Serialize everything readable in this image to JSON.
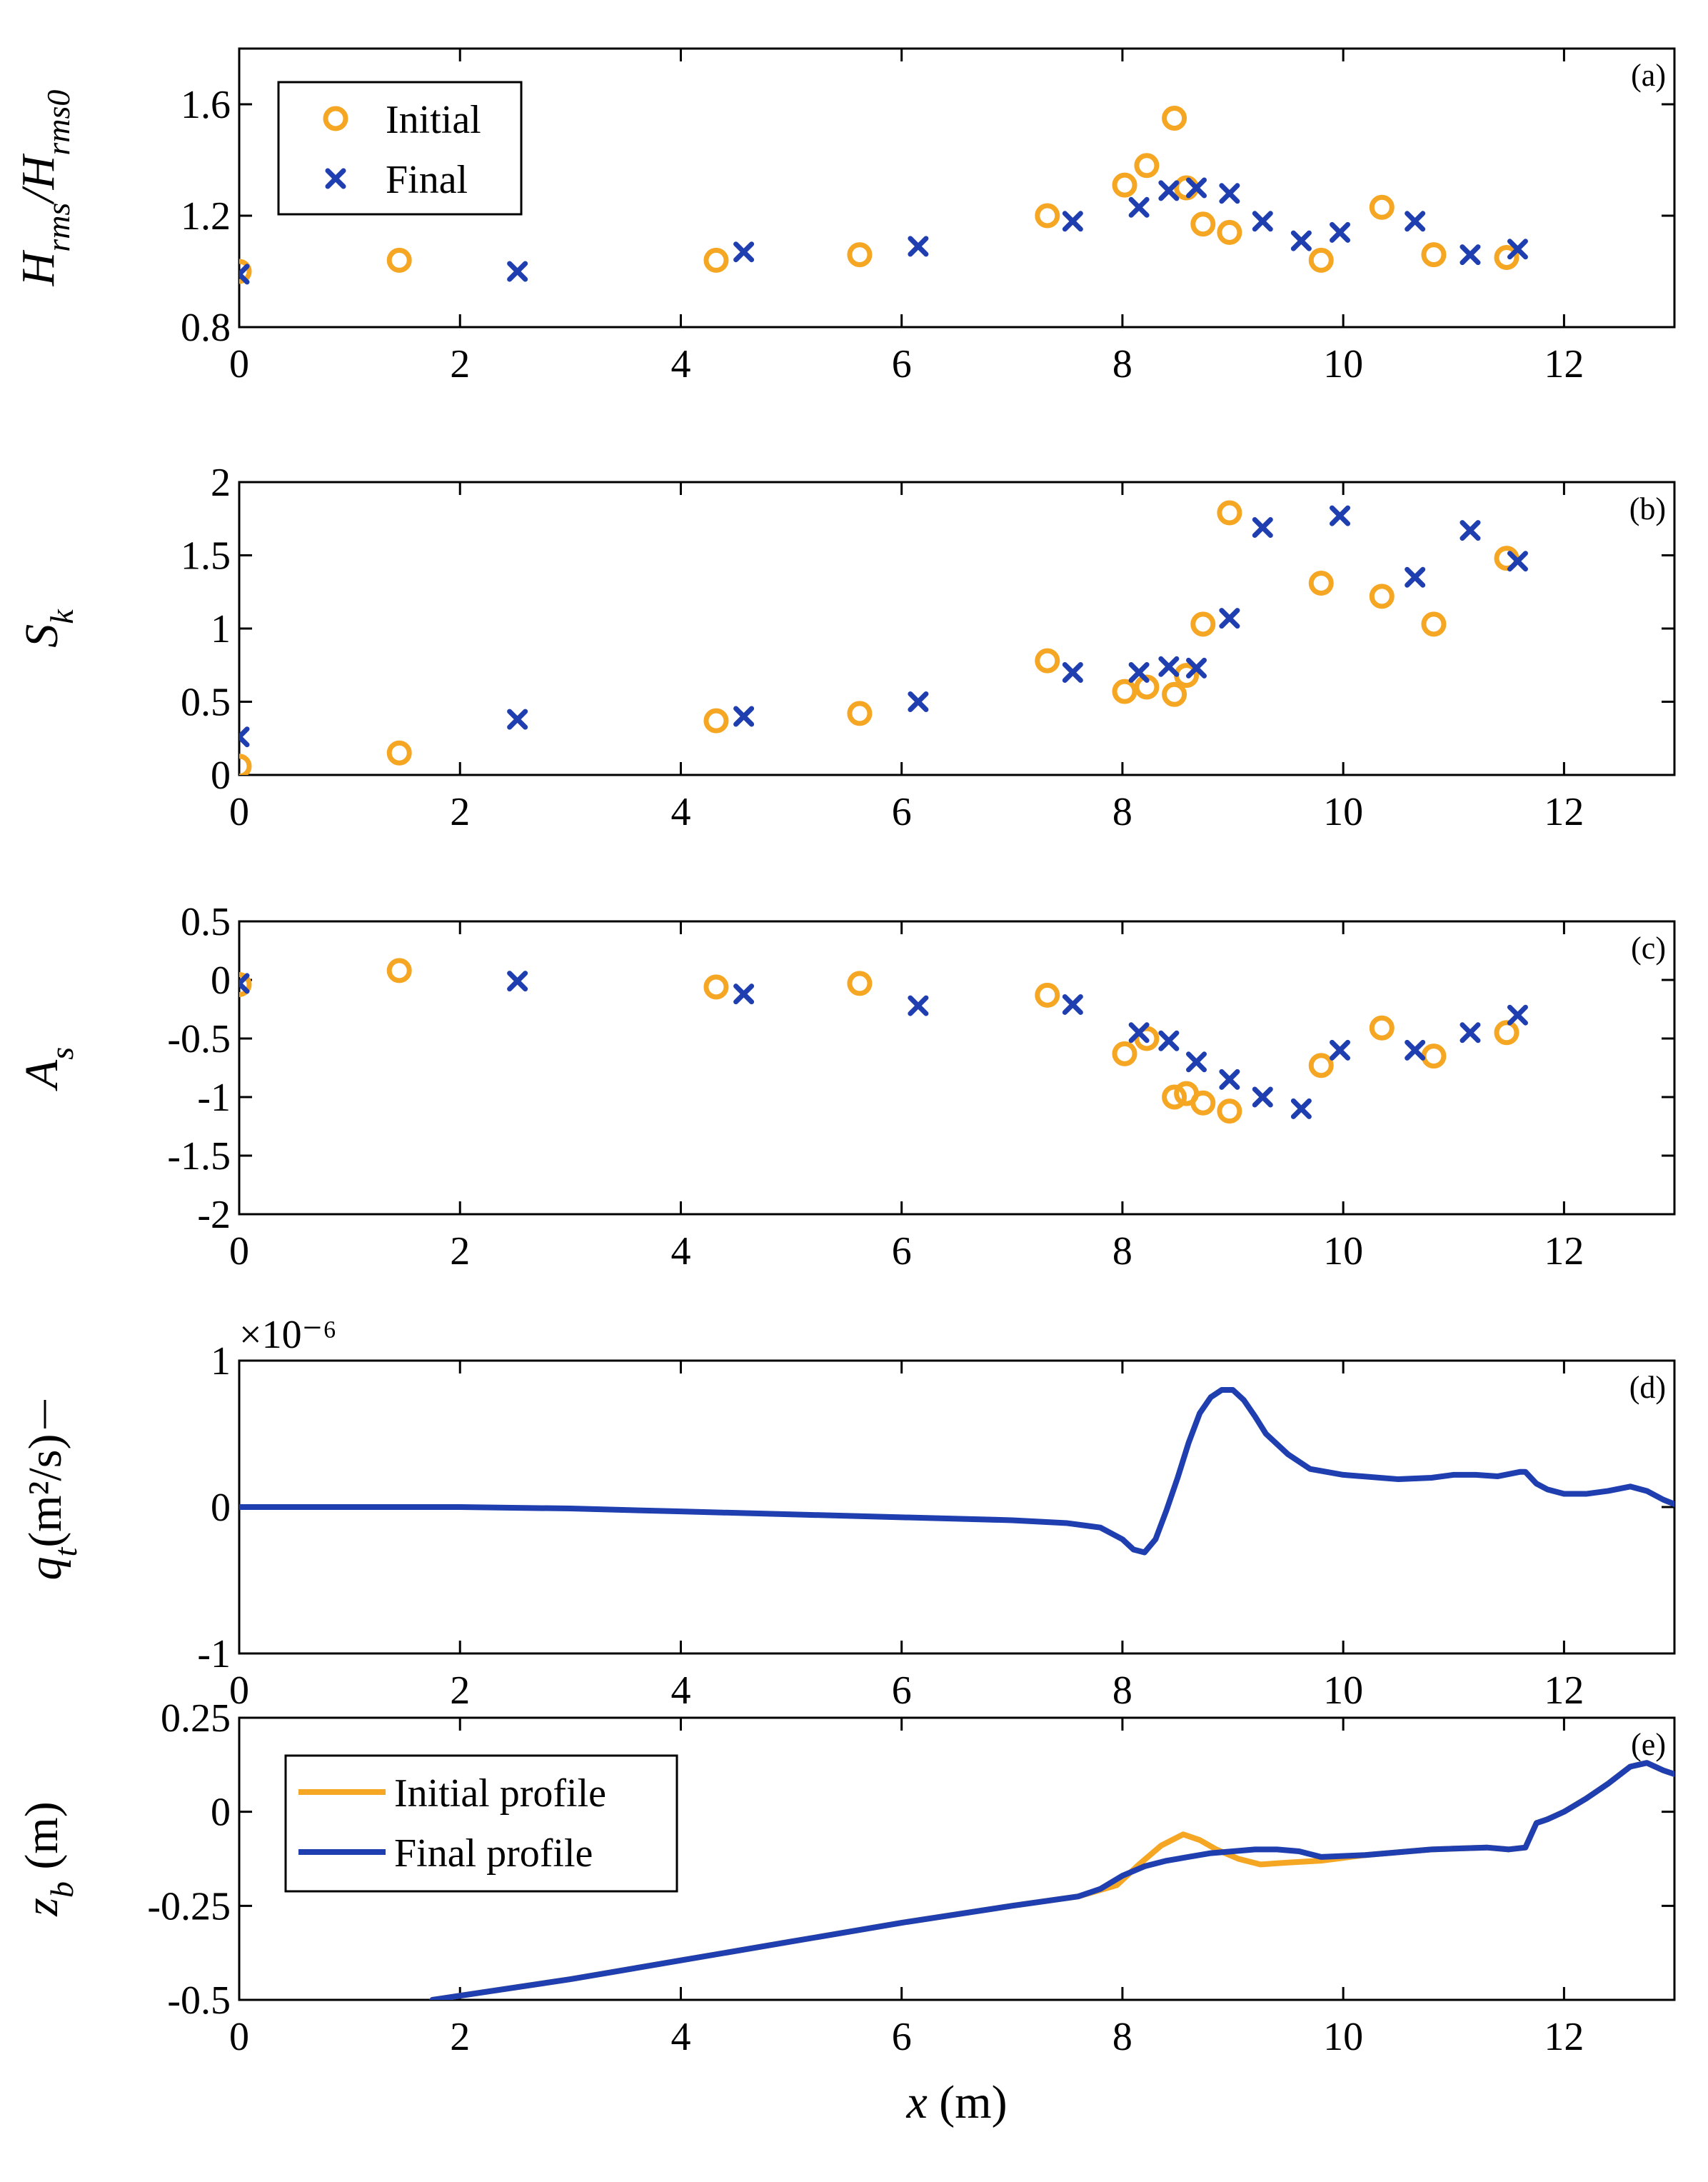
{
  "colors": {
    "initial": "#F5A623",
    "final": "#1F3FB0",
    "axis": "#000000",
    "background": "#ffffff"
  },
  "chart_data": [
    {
      "id": "a",
      "type": "scatter",
      "panel_label": "(a)",
      "ylabel": {
        "main": "H",
        "sub1": "rms",
        "sep": "/H",
        "sub2": "rms0"
      },
      "xlim": [
        0,
        13
      ],
      "ylim": [
        0.8,
        1.8
      ],
      "xticks": [
        0,
        2,
        4,
        6,
        8,
        10,
        12
      ],
      "xtick_labels": [
        "0",
        "2",
        "4",
        "6",
        "8",
        "10",
        "12"
      ],
      "yticks": [
        0.8,
        1.2,
        1.6
      ],
      "ytick_labels": [
        "0.8",
        "1.2",
        "1.6"
      ],
      "legend": {
        "position": "top-left",
        "entries": [
          "Initial",
          "Final"
        ]
      },
      "series": [
        {
          "name": "Initial",
          "marker": "circle",
          "x": [
            0,
            1.45,
            4.32,
            5.62,
            7.32,
            8.02,
            8.22,
            8.47,
            8.58,
            8.73,
            8.97,
            9.8,
            10.35,
            10.82,
            11.48
          ],
          "y": [
            1.0,
            1.04,
            1.04,
            1.06,
            1.2,
            1.31,
            1.38,
            1.55,
            1.3,
            1.17,
            1.14,
            1.04,
            1.23,
            1.06,
            1.05
          ]
        },
        {
          "name": "Final",
          "marker": "x",
          "x": [
            0,
            2.52,
            4.57,
            6.15,
            7.55,
            8.15,
            8.42,
            8.67,
            8.97,
            9.27,
            9.62,
            9.97,
            10.65,
            11.15,
            11.58
          ],
          "y": [
            0.99,
            1.0,
            1.07,
            1.09,
            1.18,
            1.23,
            1.29,
            1.3,
            1.28,
            1.18,
            1.11,
            1.14,
            1.18,
            1.06,
            1.08
          ]
        }
      ]
    },
    {
      "id": "b",
      "type": "scatter",
      "panel_label": "(b)",
      "ylabel": {
        "main": "S",
        "sub1": "k"
      },
      "xlim": [
        0,
        13
      ],
      "ylim": [
        0,
        2
      ],
      "xticks": [
        0,
        2,
        4,
        6,
        8,
        10,
        12
      ],
      "xtick_labels": [
        "0",
        "2",
        "4",
        "6",
        "8",
        "10",
        "12"
      ],
      "yticks": [
        0,
        0.5,
        1,
        1.5,
        2
      ],
      "ytick_labels": [
        "0",
        "0.5",
        "1",
        "1.5",
        "2"
      ],
      "series": [
        {
          "name": "Initial",
          "marker": "circle",
          "x": [
            0,
            1.45,
            4.32,
            5.62,
            7.32,
            8.02,
            8.22,
            8.47,
            8.58,
            8.73,
            8.97,
            9.8,
            10.35,
            10.82,
            11.48
          ],
          "y": [
            0.06,
            0.15,
            0.37,
            0.42,
            0.78,
            0.57,
            0.6,
            0.55,
            0.68,
            1.03,
            1.79,
            1.31,
            1.22,
            1.03,
            1.48
          ]
        },
        {
          "name": "Final",
          "marker": "x",
          "x": [
            0,
            2.52,
            4.57,
            6.15,
            7.55,
            8.15,
            8.42,
            8.67,
            8.97,
            9.27,
            9.97,
            10.65,
            11.15,
            11.58
          ],
          "y": [
            0.26,
            0.38,
            0.4,
            0.5,
            0.7,
            0.7,
            0.74,
            0.73,
            1.07,
            1.69,
            1.77,
            1.35,
            1.67,
            1.46
          ]
        }
      ]
    },
    {
      "id": "c",
      "type": "scatter",
      "panel_label": "(c)",
      "ylabel": {
        "main": "A",
        "sub1": "s"
      },
      "xlim": [
        0,
        13
      ],
      "ylim": [
        -2,
        0.5
      ],
      "xticks": [
        0,
        2,
        4,
        6,
        8,
        10,
        12
      ],
      "xtick_labels": [
        "0",
        "2",
        "4",
        "6",
        "8",
        "10",
        "12"
      ],
      "yticks": [
        -2,
        -1.5,
        -1,
        -0.5,
        0,
        0.5
      ],
      "ytick_labels": [
        "-2",
        "-1.5",
        "-1",
        "-0.5",
        "0",
        "0.5"
      ],
      "series": [
        {
          "name": "Initial",
          "marker": "circle",
          "x": [
            0,
            1.45,
            4.32,
            5.62,
            7.32,
            8.02,
            8.22,
            8.47,
            8.58,
            8.73,
            8.97,
            9.8,
            10.35,
            10.82,
            11.48
          ],
          "y": [
            -0.04,
            0.08,
            -0.06,
            -0.03,
            -0.13,
            -0.63,
            -0.5,
            -1.0,
            -0.97,
            -1.05,
            -1.12,
            -0.73,
            -0.41,
            -0.65,
            -0.45
          ]
        },
        {
          "name": "Final",
          "marker": "x",
          "x": [
            0,
            2.52,
            4.57,
            6.15,
            7.55,
            8.15,
            8.42,
            8.67,
            8.97,
            9.27,
            9.62,
            9.97,
            10.65,
            11.15,
            11.58
          ],
          "y": [
            -0.03,
            -0.01,
            -0.12,
            -0.22,
            -0.21,
            -0.45,
            -0.52,
            -0.7,
            -0.85,
            -1.0,
            -1.1,
            -0.6,
            -0.6,
            -0.45,
            -0.3
          ]
        }
      ]
    },
    {
      "id": "d",
      "type": "line",
      "panel_label": "(d)",
      "ylabel": {
        "main": "q",
        "sub1": "t",
        "units": "(m²/s)"
      },
      "exponent_label": "×10⁻⁶",
      "xlim": [
        0,
        13
      ],
      "ylim": [
        -1,
        1
      ],
      "xticks": [
        0,
        2,
        4,
        6,
        8,
        10,
        12
      ],
      "xtick_labels": [
        "0",
        "2",
        "4",
        "6",
        "8",
        "10",
        "12"
      ],
      "yticks": [
        -1,
        0,
        1
      ],
      "ytick_labels": [
        "-1",
        "0",
        "1"
      ],
      "series": [
        {
          "name": "qt",
          "color": "final",
          "x": [
            0,
            1,
            2,
            3,
            4,
            5,
            6,
            6.5,
            7,
            7.5,
            7.8,
            8.0,
            8.1,
            8.2,
            8.3,
            8.4,
            8.5,
            8.6,
            8.7,
            8.8,
            8.9,
            9.0,
            9.1,
            9.2,
            9.3,
            9.5,
            9.7,
            10.0,
            10.5,
            10.8,
            11.0,
            11.2,
            11.4,
            11.6,
            11.65,
            11.75,
            11.85,
            12.0,
            12.2,
            12.4,
            12.6,
            12.75,
            12.9,
            13.0
          ],
          "y": [
            0,
            0,
            0,
            -0.01,
            -0.03,
            -0.05,
            -0.07,
            -0.08,
            -0.09,
            -0.11,
            -0.14,
            -0.22,
            -0.29,
            -0.31,
            -0.22,
            -0.02,
            0.2,
            0.44,
            0.64,
            0.75,
            0.8,
            0.8,
            0.73,
            0.62,
            0.5,
            0.36,
            0.26,
            0.22,
            0.19,
            0.2,
            0.22,
            0.22,
            0.21,
            0.24,
            0.24,
            0.16,
            0.12,
            0.09,
            0.09,
            0.11,
            0.14,
            0.11,
            0.05,
            0.02
          ]
        }
      ]
    },
    {
      "id": "e",
      "type": "line",
      "panel_label": "(e)",
      "ylabel": {
        "main": "z",
        "sub1": "b",
        "units": " (m)"
      },
      "xlabel": {
        "main": "x",
        "units": " (m)"
      },
      "xlim": [
        0,
        13
      ],
      "ylim": [
        -0.5,
        0.25
      ],
      "xticks": [
        0,
        2,
        4,
        6,
        8,
        10,
        12
      ],
      "xtick_labels": [
        "0",
        "2",
        "4",
        "6",
        "8",
        "10",
        "12"
      ],
      "yticks": [
        -0.5,
        -0.25,
        0,
        0.25
      ],
      "ytick_labels": [
        "-0.5",
        "-0.25",
        "0",
        "0.25"
      ],
      "legend": {
        "position": "top-left",
        "entries": [
          "Initial profile",
          "Final profile"
        ]
      },
      "series": [
        {
          "name": "Initial profile",
          "color": "initial",
          "x": [
            1.75,
            3,
            4,
            5,
            6,
            7,
            7.6,
            7.95,
            8.15,
            8.35,
            8.55,
            8.7,
            8.85,
            9.05,
            9.25,
            9.5,
            9.8,
            10.2,
            10.8,
            11.3,
            11.5,
            11.65,
            11.75,
            11.85,
            12.0,
            12.2,
            12.4,
            12.6,
            12.75,
            12.9,
            13.0
          ],
          "y": [
            -0.5,
            -0.445,
            -0.395,
            -0.345,
            -0.295,
            -0.25,
            -0.225,
            -0.195,
            -0.14,
            -0.09,
            -0.06,
            -0.075,
            -0.1,
            -0.125,
            -0.14,
            -0.135,
            -0.13,
            -0.115,
            -0.1,
            -0.095,
            -0.1,
            -0.095,
            -0.03,
            -0.02,
            0,
            0.035,
            0.075,
            0.12,
            0.13,
            0.11,
            0.1
          ]
        },
        {
          "name": "Final profile",
          "color": "final",
          "x": [
            1.75,
            3,
            4,
            5,
            6,
            7,
            7.6,
            7.8,
            8.0,
            8.2,
            8.4,
            8.6,
            8.8,
            9.0,
            9.2,
            9.4,
            9.6,
            9.8,
            10.2,
            10.8,
            11.3,
            11.5,
            11.65,
            11.75,
            11.85,
            12.0,
            12.2,
            12.4,
            12.6,
            12.75,
            12.9,
            13.0
          ],
          "y": [
            -0.5,
            -0.445,
            -0.395,
            -0.345,
            -0.295,
            -0.25,
            -0.225,
            -0.205,
            -0.17,
            -0.145,
            -0.13,
            -0.12,
            -0.11,
            -0.105,
            -0.1,
            -0.1,
            -0.105,
            -0.12,
            -0.115,
            -0.1,
            -0.095,
            -0.1,
            -0.095,
            -0.03,
            -0.02,
            0,
            0.035,
            0.075,
            0.12,
            0.13,
            0.11,
            0.1
          ]
        }
      ]
    }
  ]
}
